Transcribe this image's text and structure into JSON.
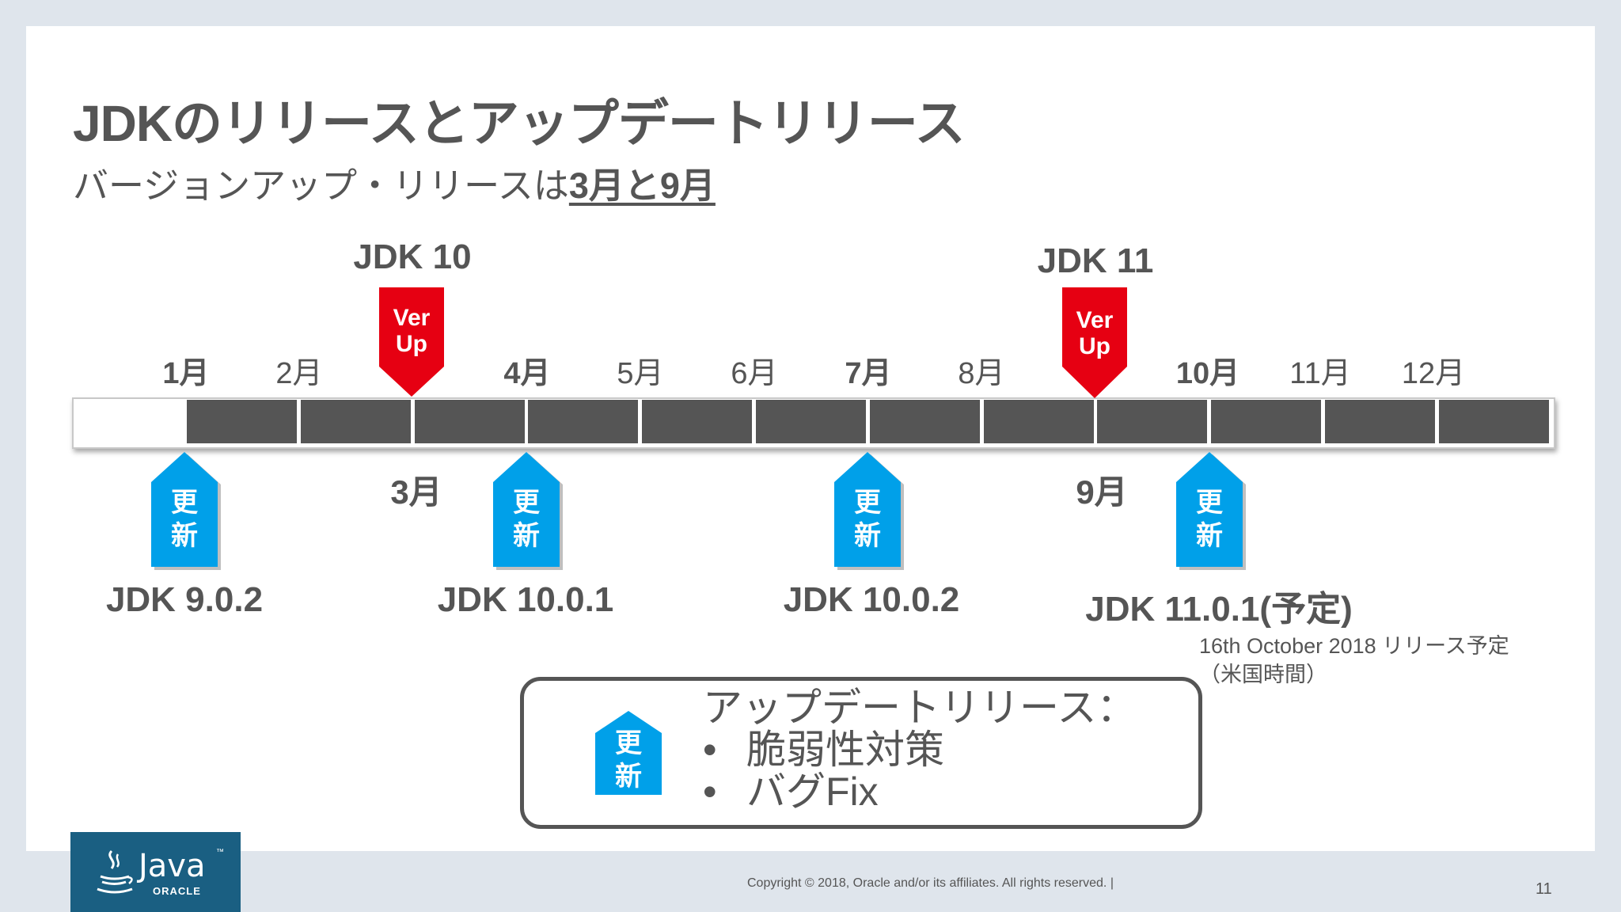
{
  "title": "JDKのリリースとアップデートリリース",
  "subtitle": {
    "prefix": "バージョンアップ・リリースは",
    "emphasis": "3月と9月"
  },
  "months": [
    "1月",
    "2月",
    "3月",
    "4月",
    "5月",
    "6月",
    "7月",
    "8月",
    "9月",
    "10月",
    "11月",
    "12月"
  ],
  "version_up": {
    "label_line1": "Ver",
    "label_line2": "Up",
    "color": "#e60012",
    "releases": [
      {
        "jdk": "JDK 10",
        "month_label": "3月"
      },
      {
        "jdk": "JDK 11",
        "month_label": "9月"
      }
    ]
  },
  "update": {
    "label_line1": "更",
    "label_line2": "新",
    "color": "#00a0e9",
    "releases": [
      {
        "name": "JDK 9.0.2"
      },
      {
        "name": "JDK 10.0.1"
      },
      {
        "name": "JDK 10.0.2"
      },
      {
        "name": "JDK 11.0.1(予定)"
      }
    ]
  },
  "note": {
    "line1": "16th October 2018 リリース予定",
    "line2": "（米国時間）"
  },
  "legend": {
    "heading": "アップデートリリース：",
    "bullets": [
      "脆弱性対策",
      "バグFix"
    ],
    "bullet_symbol": "•"
  },
  "footer": {
    "copyright": "Copyright © 2018, Oracle and/or its affiliates. All rights reserved.  |",
    "page_number": "11",
    "logo_java": "Java",
    "logo_tm": "™",
    "logo_oracle": "ORACLE"
  }
}
